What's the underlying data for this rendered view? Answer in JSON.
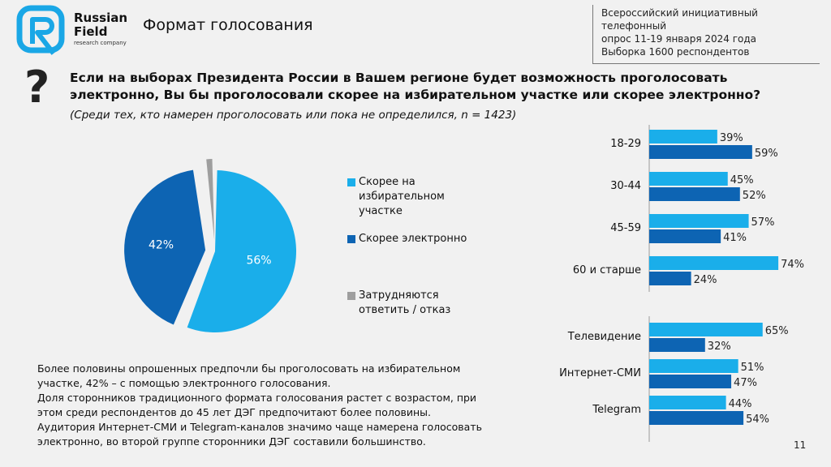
{
  "brand": {
    "line1": "Russian",
    "line2": "Field",
    "line3": "research company"
  },
  "page_title": "Формат голосования",
  "survey_info": {
    "line1": "Всероссийский инициативный телефонный",
    "line2": "опрос 11-19 января 2024 года",
    "line3": "Выборка 1600 респондентов"
  },
  "question": {
    "icon": "?",
    "text": "Если на выборах Президента России в Вашем регионе будет возможность проголосовать электронно, Вы бы проголосовали скорее на избирательном участке или скорее электронно?",
    "subtitle": "(Среди тех, кто намерен проголосовать или пока не определился, n = 1423)"
  },
  "colors": {
    "light_blue": "#1aaeea",
    "dark_blue": "#0d64b3",
    "gray": "#9e9e9e"
  },
  "chart_data": [
    {
      "type": "pie",
      "slices": [
        {
          "label": "Скорее на избирательном участке",
          "value": 56,
          "display": "56%"
        },
        {
          "label": "Скорее электронно",
          "value": 42,
          "display": "42%"
        },
        {
          "label": "Затрудняются ответить / отказ",
          "value": 2,
          "display": "2%"
        }
      ],
      "legend": [
        {
          "lines": [
            "Скорее на",
            "избирательном",
            "участке"
          ]
        },
        {
          "lines": [
            "Скорее электронно"
          ]
        },
        {
          "lines": [
            "Затрудняются",
            "ответить / отказ"
          ]
        }
      ]
    },
    {
      "type": "bar",
      "orientation": "horizontal",
      "categories": [
        "18-29",
        "30-44",
        "45-59",
        "60 и старше"
      ],
      "series": [
        {
          "values": [
            39,
            45,
            57,
            74
          ],
          "labels": [
            "39%",
            "45%",
            "57%",
            "74%"
          ]
        },
        {
          "values": [
            59,
            52,
            41,
            24
          ],
          "labels": [
            "59%",
            "52%",
            "41%",
            "24%"
          ]
        }
      ]
    },
    {
      "type": "bar",
      "orientation": "horizontal",
      "categories": [
        "Телевидение",
        "Интернет-СМИ",
        "Telegram"
      ],
      "series": [
        {
          "values": [
            65,
            51,
            44
          ],
          "labels": [
            "65%",
            "51%",
            "44%"
          ]
        },
        {
          "values": [
            32,
            47,
            54
          ],
          "labels": [
            "32%",
            "47%",
            "54%"
          ]
        }
      ]
    }
  ],
  "summary": [
    "Более половины опрошенных предпочли бы проголосовать на избирательном",
    "участке, 42% – с помощью электронного голосования.",
    "Доля сторонников традиционного формата голосования растет с возрастом, при",
    "этом среди респондентов до 45 лет ДЭГ предпочитают более половины.",
    "Аудитория Интернет-СМИ и Telegram-каналов значимо чаще намерена голосовать",
    "электронно, во второй группе сторонники ДЭГ составили большинство."
  ],
  "page_number": "11"
}
